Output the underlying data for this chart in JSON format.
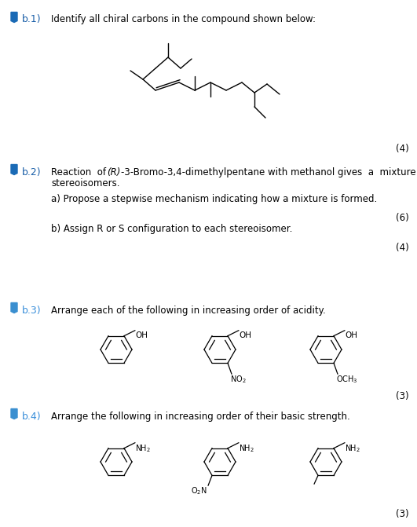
{
  "bg_color": "#ffffff",
  "text_color": "#000000",
  "blue_dark": "#1a5fa8",
  "blue_light": "#3a8fda",
  "q1_num": "b.1)",
  "q1_text": "Identify all chiral carbons in the compound shown below:",
  "q2_num": "b.2)",
  "q2_text_pre": "Reaction of ",
  "q2_R": "(R)",
  "q2_text_post": "-3-Bromo-3,4-dimethylpentane with methanol gives  a  mixture  of",
  "q2_line2": "stereoisomers.",
  "q2a": "a) Propose a stepwise mechanism indicating how a mixture is formed.",
  "q2b": "b) Assign R or S configuration to each stereoisomer.",
  "q3_num": "b.3)",
  "q3_text": "Arrange each of the following in increasing order of acidity.",
  "q4_num": "b.4)",
  "q4_text": "Arrange the following in increasing order of their basic strength.",
  "m4a": "(4)",
  "m6": "(6)",
  "m4b": "(4)",
  "m3a": "(3)",
  "m3b": "(3)",
  "mol_lw": 1.0,
  "benz_lw": 0.9
}
